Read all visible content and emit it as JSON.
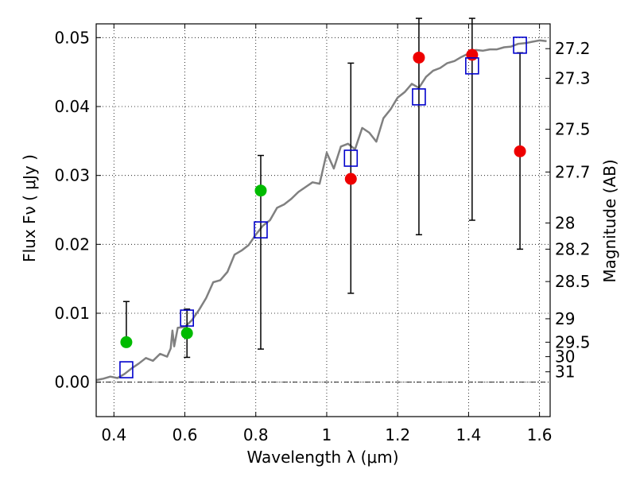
{
  "chart_data": {
    "type": "scatter",
    "title": "",
    "xlabel": "Wavelength  λ (μm)",
    "ylabel": "Flux  Fν  ( μJy )",
    "y2label": "Magnitude (AB)",
    "xlim": [
      0.35,
      1.63
    ],
    "ylim": [
      -0.005,
      0.052
    ],
    "grid": true,
    "x_ticks": [
      0.4,
      0.6,
      0.8,
      1.0,
      1.2,
      1.4,
      1.6
    ],
    "x_tick_labels": [
      "0.4",
      "0.6",
      "0.8",
      "1",
      "1.2",
      "1.4",
      "1.6"
    ],
    "y_ticks": [
      0.0,
      0.01,
      0.02,
      0.03,
      0.04,
      0.05
    ],
    "y_tick_labels": [
      "0.00",
      "0.01",
      "0.02",
      "0.03",
      "0.04",
      "0.05"
    ],
    "y2_ticks": [
      {
        "label": "27.2",
        "flux": 0.0484
      },
      {
        "label": "27.3",
        "flux": 0.0441
      },
      {
        "label": "27.5",
        "flux": 0.0367
      },
      {
        "label": "27.7",
        "flux": 0.0305
      },
      {
        "label": "28",
        "flux": 0.0231
      },
      {
        "label": "28.2",
        "flux": 0.0193
      },
      {
        "label": "28.5",
        "flux": 0.0146
      },
      {
        "label": "29",
        "flux": 0.0092
      },
      {
        "label": "29.5",
        "flux": 0.0058
      },
      {
        "label": "30",
        "flux": 0.0037
      },
      {
        "label": "31",
        "flux": 0.0015
      }
    ],
    "model_spectrum": {
      "color": "#808080",
      "x": [
        0.35,
        0.37,
        0.39,
        0.41,
        0.43,
        0.45,
        0.47,
        0.49,
        0.51,
        0.53,
        0.55,
        0.56,
        0.565,
        0.57,
        0.58,
        0.6,
        0.62,
        0.64,
        0.66,
        0.68,
        0.7,
        0.72,
        0.74,
        0.76,
        0.78,
        0.8,
        0.82,
        0.84,
        0.86,
        0.88,
        0.9,
        0.92,
        0.94,
        0.96,
        0.98,
        1.0,
        1.02,
        1.04,
        1.06,
        1.08,
        1.1,
        1.12,
        1.14,
        1.16,
        1.18,
        1.2,
        1.22,
        1.24,
        1.26,
        1.28,
        1.3,
        1.32,
        1.34,
        1.36,
        1.38,
        1.4,
        1.42,
        1.44,
        1.46,
        1.48,
        1.5,
        1.52,
        1.54,
        1.56,
        1.58,
        1.6,
        1.62
      ],
      "y": [
        0.0003,
        0.0005,
        0.0008,
        0.0006,
        0.0012,
        0.002,
        0.0027,
        0.0035,
        0.0031,
        0.0041,
        0.0037,
        0.0049,
        0.0075,
        0.0052,
        0.0079,
        0.008,
        0.009,
        0.0105,
        0.0122,
        0.0145,
        0.0148,
        0.016,
        0.0185,
        0.0191,
        0.0199,
        0.0214,
        0.0227,
        0.0235,
        0.0253,
        0.0258,
        0.0266,
        0.0276,
        0.0283,
        0.029,
        0.0288,
        0.0333,
        0.031,
        0.0342,
        0.0346,
        0.0338,
        0.0369,
        0.0362,
        0.0349,
        0.0383,
        0.0396,
        0.0413,
        0.0421,
        0.0433,
        0.0427,
        0.0443,
        0.0452,
        0.0456,
        0.0463,
        0.0466,
        0.0472,
        0.0477,
        0.0482,
        0.0481,
        0.0483,
        0.0483,
        0.0486,
        0.0487,
        0.0491,
        0.0492,
        0.0494,
        0.0496,
        0.0495
      ]
    },
    "series": [
      {
        "color": "#00bb00",
        "marker": "circle",
        "x": [
          0.435,
          0.606,
          0.814
        ],
        "y": [
          0.0058,
          0.0071,
          0.0278
        ],
        "yerr_low": [
          0.0058,
          0.0036,
          0.0048
        ],
        "yerr_high": [
          0.0117,
          0.0106,
          0.0329
        ]
      },
      {
        "color": "#ee0000",
        "marker": "circle",
        "x": [
          1.068,
          1.26,
          1.41,
          1.545
        ],
        "y": [
          0.0295,
          0.0471,
          0.0475,
          0.0335
        ],
        "yerr_low": [
          0.0129,
          0.0214,
          0.0235,
          0.0193
        ],
        "yerr_high": [
          0.0463,
          0.0528,
          0.0528,
          0.0478
        ]
      },
      {
        "color": "#0000cc",
        "marker": "open-square",
        "x": [
          0.435,
          0.606,
          0.814,
          1.068,
          1.26,
          1.41,
          1.545
        ],
        "y": [
          0.0018,
          0.0093,
          0.0221,
          0.0325,
          0.0414,
          0.0459,
          0.0489
        ]
      }
    ]
  }
}
